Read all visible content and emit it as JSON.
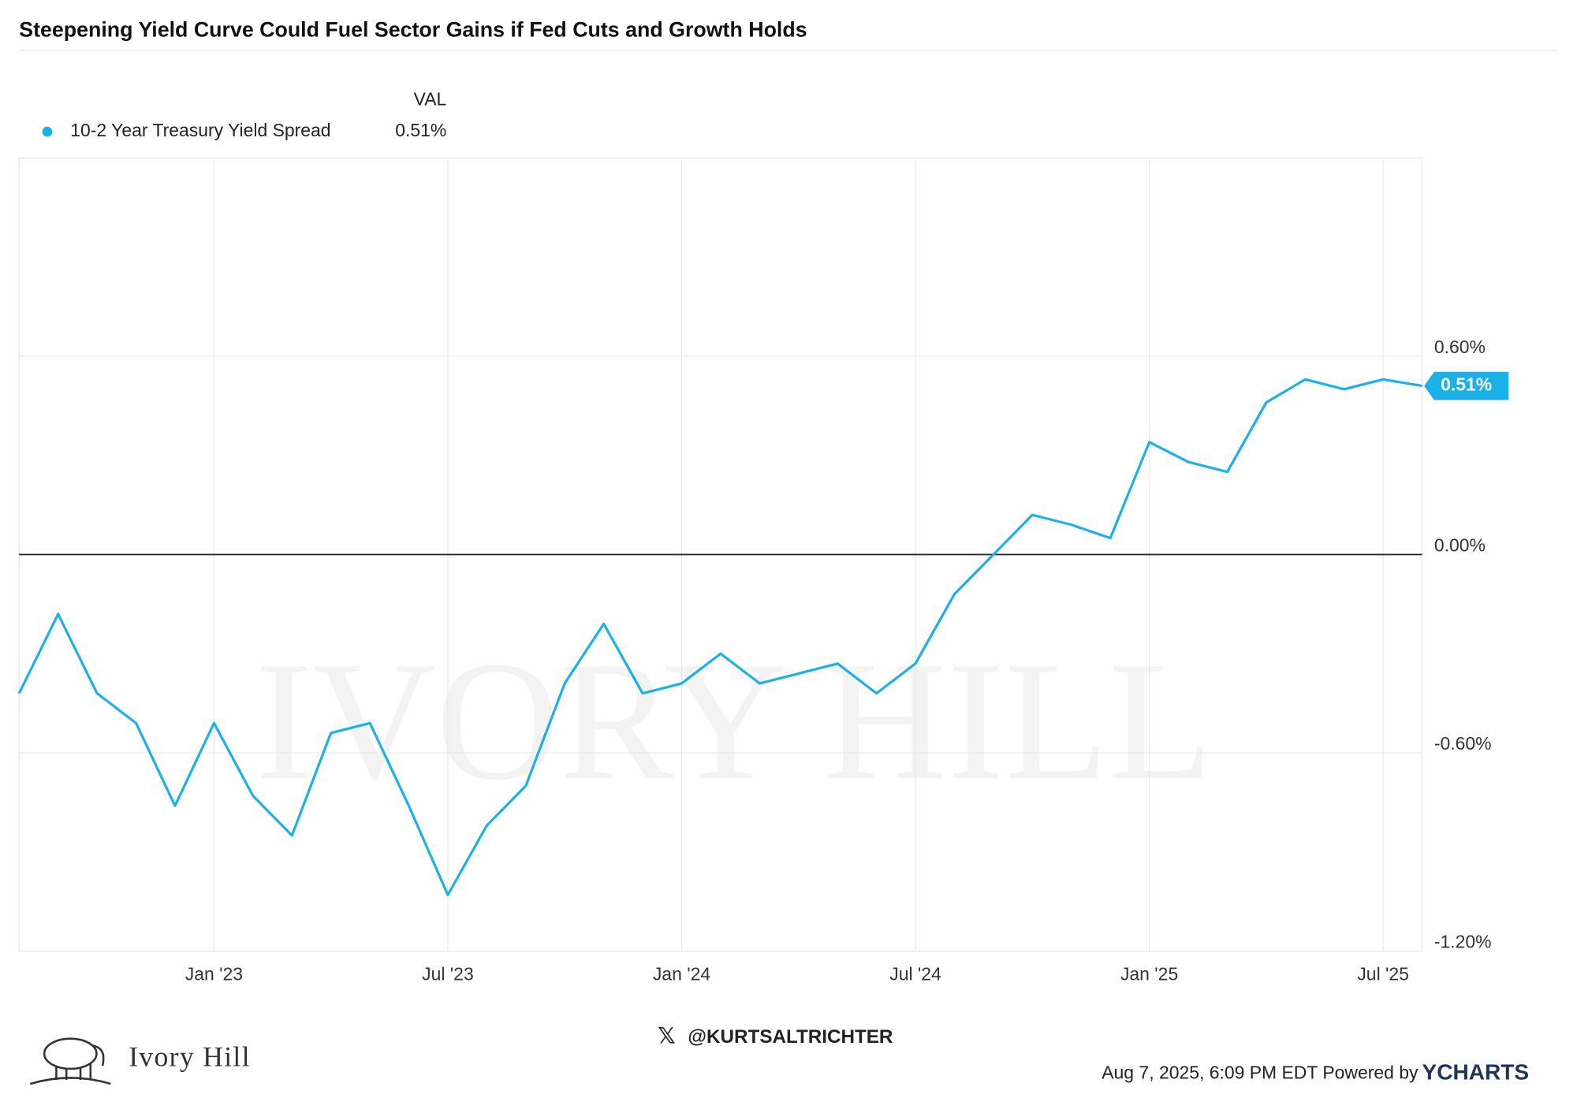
{
  "chart_data": {
    "type": "line",
    "title": "Steepening Yield Curve Could Fuel Sector Gains if Fed Cuts and Growth Holds",
    "legend_header": "VAL",
    "watermark": "IVORY HILL",
    "x": [
      "2022-08",
      "2022-09",
      "2022-10",
      "2022-11",
      "2022-12",
      "2023-01",
      "2023-02",
      "2023-03",
      "2023-04",
      "2023-05",
      "2023-06",
      "2023-07",
      "2023-08",
      "2023-09",
      "2023-10",
      "2023-11",
      "2023-12",
      "2024-01",
      "2024-02",
      "2024-03",
      "2024-04",
      "2024-05",
      "2024-06",
      "2024-07",
      "2024-08",
      "2024-09",
      "2024-10",
      "2024-11",
      "2024-12",
      "2025-01",
      "2025-02",
      "2025-03",
      "2025-04",
      "2025-05",
      "2025-06",
      "2025-07",
      "2025-08"
    ],
    "series": [
      {
        "name": "10-2 Year Treasury Yield Spread",
        "color": "#1ab0e8",
        "values": [
          -0.42,
          -0.18,
          -0.42,
          -0.51,
          -0.76,
          -0.51,
          -0.73,
          -0.85,
          -0.54,
          -0.51,
          -0.76,
          -1.03,
          -0.82,
          -0.7,
          -0.39,
          -0.21,
          -0.42,
          -0.39,
          -0.3,
          -0.39,
          -0.36,
          -0.33,
          -0.42,
          -0.33,
          -0.12,
          0.0,
          0.12,
          0.09,
          0.05,
          0.34,
          0.28,
          0.25,
          0.46,
          0.53,
          0.5,
          0.53,
          0.51
        ],
        "value_labels": [
          null,
          null,
          null,
          null,
          null,
          null,
          null,
          null,
          null,
          null,
          null,
          null,
          null,
          null,
          null,
          null,
          null,
          null,
          null,
          null,
          null,
          null,
          null,
          null,
          null,
          null,
          null,
          null,
          null,
          null,
          null,
          null,
          null,
          null,
          null,
          null,
          "0.51%"
        ]
      }
    ],
    "xlim": [
      "2022-08",
      "2025-08"
    ],
    "xticks": [
      {
        "value": "2023-01",
        "label": "Jan '23"
      },
      {
        "value": "2023-07",
        "label": "Jul '23"
      },
      {
        "value": "2024-01",
        "label": "Jan '24"
      },
      {
        "value": "2024-07",
        "label": "Jul '24"
      },
      {
        "value": "2025-01",
        "label": "Jan '25"
      },
      {
        "value": "2025-07",
        "label": "Jul '25"
      }
    ],
    "ylim": [
      -1.2,
      1.2
    ],
    "yticks": [
      {
        "value": 0.6,
        "label": "0.60%"
      },
      {
        "value": 0,
        "label": "0.00%"
      },
      {
        "value": -0.6,
        "label": "-0.60%"
      },
      {
        "value": -1.2,
        "label": "-1.20%"
      }
    ],
    "grid": true
  },
  "footer": {
    "brand": "Ivory Hill",
    "handle": "@KURTSALTRICHTER",
    "timestamp": "Aug 7, 2025, 6:09 PM EDT Powered by",
    "source": "YCHARTS"
  }
}
